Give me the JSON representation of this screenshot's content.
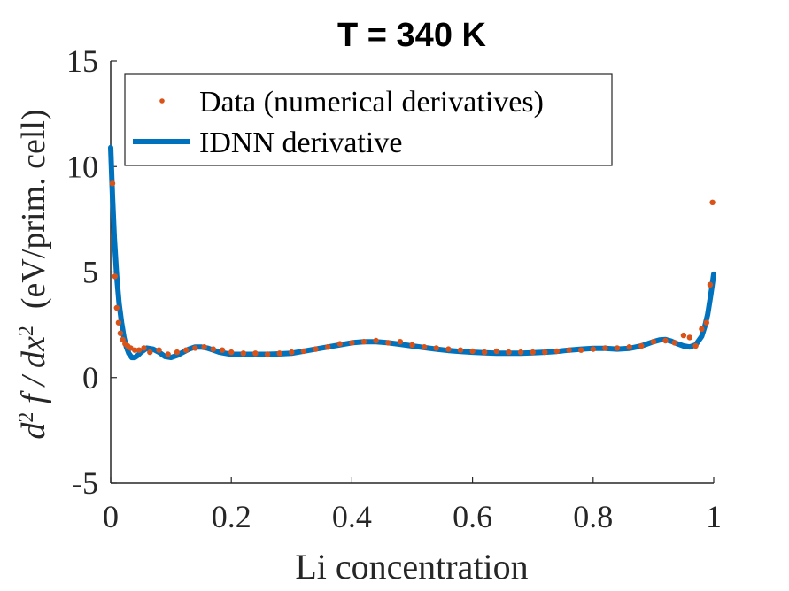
{
  "chart_data": {
    "type": "line",
    "title": "T = 340 K",
    "xlabel": "Li concentration",
    "ylabel_parts": [
      "d",
      "2",
      " f / dx",
      "2",
      "  (eV/prim. cell)"
    ],
    "xlim": [
      0,
      1
    ],
    "ylim": [
      -5,
      15
    ],
    "xticks": [
      0,
      0.2,
      0.4,
      0.6,
      0.8,
      1
    ],
    "xtick_labels": [
      "0",
      "0.2",
      "0.4",
      "0.6",
      "0.8",
      "1"
    ],
    "yticks": [
      -5,
      0,
      5,
      10,
      15
    ],
    "ytick_labels": [
      "-5",
      "0",
      "5",
      "10",
      "15"
    ],
    "grid": false,
    "legend_position": "top-left",
    "series": [
      {
        "name": "Data (numerical derivatives)",
        "style": "markers",
        "color": "#D95319",
        "x": [
          0.003,
          0.007,
          0.01,
          0.013,
          0.016,
          0.02,
          0.024,
          0.028,
          0.033,
          0.04,
          0.047,
          0.055,
          0.065,
          0.08,
          0.095,
          0.11,
          0.125,
          0.14,
          0.155,
          0.17,
          0.185,
          0.2,
          0.22,
          0.24,
          0.26,
          0.28,
          0.3,
          0.32,
          0.34,
          0.36,
          0.38,
          0.4,
          0.42,
          0.44,
          0.46,
          0.48,
          0.5,
          0.52,
          0.54,
          0.56,
          0.58,
          0.6,
          0.62,
          0.64,
          0.66,
          0.68,
          0.7,
          0.72,
          0.74,
          0.76,
          0.78,
          0.8,
          0.82,
          0.84,
          0.86,
          0.88,
          0.9,
          0.92,
          0.935,
          0.95,
          0.96,
          0.97,
          0.98,
          0.988,
          0.994,
          0.998
        ],
        "y": [
          9.2,
          4.8,
          3.3,
          2.6,
          2.1,
          1.8,
          1.6,
          1.5,
          1.4,
          1.3,
          1.3,
          1.4,
          1.2,
          1.3,
          1.1,
          1.2,
          1.3,
          1.4,
          1.45,
          1.35,
          1.3,
          1.2,
          1.15,
          1.15,
          1.1,
          1.15,
          1.2,
          1.25,
          1.35,
          1.45,
          1.6,
          1.65,
          1.7,
          1.75,
          1.65,
          1.7,
          1.55,
          1.45,
          1.4,
          1.35,
          1.3,
          1.25,
          1.2,
          1.25,
          1.2,
          1.2,
          1.2,
          1.2,
          1.25,
          1.3,
          1.3,
          1.35,
          1.4,
          1.4,
          1.45,
          1.5,
          1.7,
          1.75,
          1.65,
          2.0,
          1.9,
          1.5,
          2.3,
          2.6,
          4.4,
          8.3
        ]
      },
      {
        "name": "IDNN derivative",
        "style": "line",
        "color": "#0072BD",
        "x": [
          0.0,
          0.003,
          0.006,
          0.01,
          0.014,
          0.018,
          0.022,
          0.026,
          0.03,
          0.035,
          0.04,
          0.045,
          0.05,
          0.06,
          0.07,
          0.08,
          0.09,
          0.1,
          0.11,
          0.12,
          0.13,
          0.14,
          0.15,
          0.16,
          0.17,
          0.18,
          0.19,
          0.2,
          0.22,
          0.24,
          0.26,
          0.28,
          0.3,
          0.32,
          0.34,
          0.36,
          0.38,
          0.4,
          0.42,
          0.44,
          0.46,
          0.48,
          0.5,
          0.52,
          0.54,
          0.56,
          0.58,
          0.6,
          0.62,
          0.64,
          0.66,
          0.68,
          0.7,
          0.72,
          0.74,
          0.76,
          0.78,
          0.8,
          0.82,
          0.84,
          0.86,
          0.88,
          0.9,
          0.91,
          0.92,
          0.93,
          0.94,
          0.95,
          0.96,
          0.97,
          0.98,
          0.985,
          0.99,
          0.995,
          1.0
        ],
        "y": [
          10.9,
          8.6,
          6.6,
          4.8,
          3.5,
          2.6,
          1.9,
          1.45,
          1.15,
          0.95,
          0.95,
          1.05,
          1.2,
          1.4,
          1.35,
          1.2,
          1.0,
          0.95,
          1.05,
          1.2,
          1.35,
          1.45,
          1.45,
          1.4,
          1.3,
          1.2,
          1.15,
          1.1,
          1.1,
          1.1,
          1.1,
          1.12,
          1.15,
          1.25,
          1.35,
          1.45,
          1.55,
          1.65,
          1.7,
          1.7,
          1.65,
          1.58,
          1.5,
          1.42,
          1.35,
          1.28,
          1.24,
          1.2,
          1.17,
          1.15,
          1.15,
          1.15,
          1.17,
          1.2,
          1.24,
          1.3,
          1.35,
          1.38,
          1.38,
          1.35,
          1.38,
          1.5,
          1.7,
          1.78,
          1.8,
          1.72,
          1.6,
          1.5,
          1.45,
          1.55,
          1.95,
          2.4,
          3.0,
          3.9,
          4.9
        ]
      }
    ]
  }
}
